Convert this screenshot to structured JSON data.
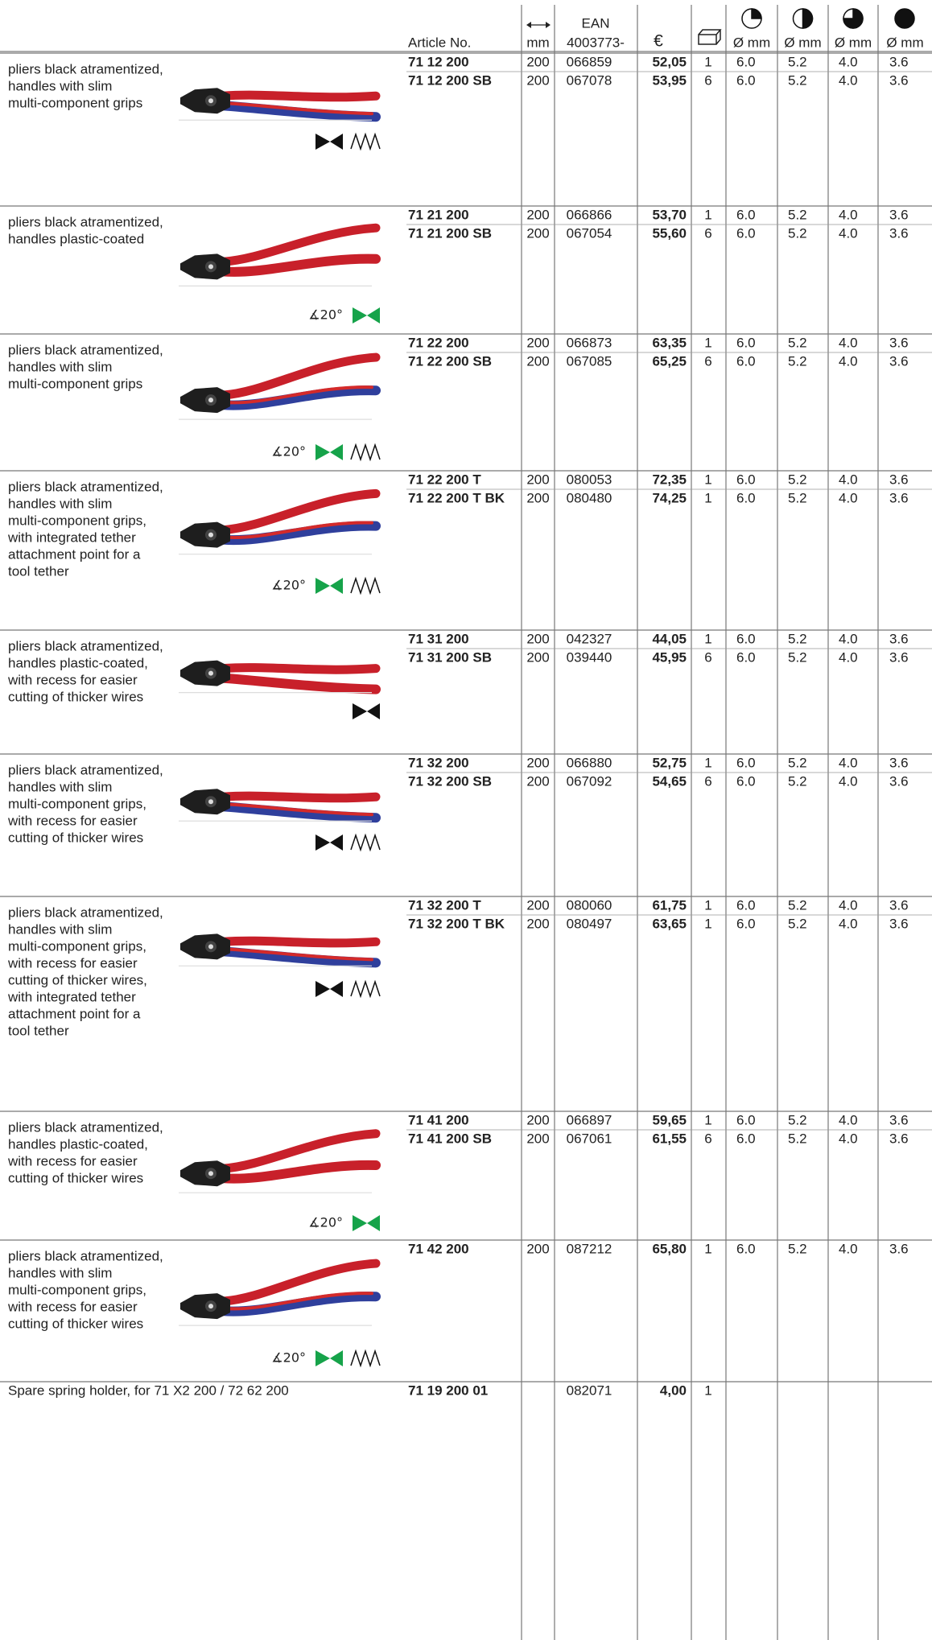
{
  "header": {
    "article_no": "Article No.",
    "length_unit": "mm",
    "ean": "EAN",
    "ean_prefix": "4003773-",
    "price": "€",
    "diameters": [
      "Ø mm",
      "Ø mm",
      "Ø mm",
      "Ø mm"
    ]
  },
  "groups": [
    {
      "description": [
        "pliers black atramentized,",
        "handles with slim",
        "multi-component grips"
      ],
      "rows": [
        [
          "71 12 200",
          "200",
          "066859",
          "52,05",
          "1",
          "6.0",
          "5.2",
          "4.0",
          "3.6"
        ],
        [
          "71 12 200 SB",
          "200",
          "067078",
          "53,95",
          "6",
          "6.0",
          "5.2",
          "4.0",
          "3.6"
        ]
      ]
    },
    {
      "description": [
        "pliers black atramentized,",
        "handles plastic-coated"
      ],
      "angle": "∡20°",
      "rows": [
        [
          "71 21 200",
          "200",
          "066866",
          "53,70",
          "1",
          "6.0",
          "5.2",
          "4.0",
          "3.6"
        ],
        [
          "71 21 200 SB",
          "200",
          "067054",
          "55,60",
          "6",
          "6.0",
          "5.2",
          "4.0",
          "3.6"
        ]
      ]
    },
    {
      "description": [
        "pliers black atramentized,",
        "handles with slim",
        "multi-component grips"
      ],
      "angle": "∡20°",
      "rows": [
        [
          "71 22 200",
          "200",
          "066873",
          "63,35",
          "1",
          "6.0",
          "5.2",
          "4.0",
          "3.6"
        ],
        [
          "71 22 200 SB",
          "200",
          "067085",
          "65,25",
          "6",
          "6.0",
          "5.2",
          "4.0",
          "3.6"
        ]
      ]
    },
    {
      "description": [
        "pliers black atramentized,",
        "handles with slim",
        "multi-component grips,",
        "with integrated tether",
        "attachment point for a",
        "tool tether"
      ],
      "angle": "∡20°",
      "rows": [
        [
          "71 22 200 T",
          "200",
          "080053",
          "72,35",
          "1",
          "6.0",
          "5.2",
          "4.0",
          "3.6"
        ],
        [
          "71 22 200 T BK",
          "200",
          "080480",
          "74,25",
          "1",
          "6.0",
          "5.2",
          "4.0",
          "3.6"
        ]
      ]
    },
    {
      "description": [
        "pliers black atramentized,",
        "handles plastic-coated,",
        "with recess for easier",
        "cutting of thicker wires"
      ],
      "rows": [
        [
          "71 31 200",
          "200",
          "042327",
          "44,05",
          "1",
          "6.0",
          "5.2",
          "4.0",
          "3.6"
        ],
        [
          "71 31 200 SB",
          "200",
          "039440",
          "45,95",
          "6",
          "6.0",
          "5.2",
          "4.0",
          "3.6"
        ]
      ]
    },
    {
      "description": [
        "pliers black atramentized,",
        "handles with slim",
        "multi-component grips,",
        "with recess for easier",
        "cutting of thicker wires"
      ],
      "rows": [
        [
          "71 32 200",
          "200",
          "066880",
          "52,75",
          "1",
          "6.0",
          "5.2",
          "4.0",
          "3.6"
        ],
        [
          "71 32 200 SB",
          "200",
          "067092",
          "54,65",
          "6",
          "6.0",
          "5.2",
          "4.0",
          "3.6"
        ]
      ]
    },
    {
      "description": [
        "pliers black atramentized,",
        "handles with slim",
        "multi-component grips,",
        "with recess for easier",
        "cutting of thicker wires,",
        "with integrated tether",
        "attachment point for a",
        "tool tether"
      ],
      "rows": [
        [
          "71 32 200 T",
          "200",
          "080060",
          "61,75",
          "1",
          "6.0",
          "5.2",
          "4.0",
          "3.6"
        ],
        [
          "71 32 200 T BK",
          "200",
          "080497",
          "63,65",
          "1",
          "6.0",
          "5.2",
          "4.0",
          "3.6"
        ]
      ]
    },
    {
      "description": [
        "pliers black atramentized,",
        "handles plastic-coated,",
        "with recess for easier",
        "cutting of thicker wires"
      ],
      "angle": "∡20°",
      "rows": [
        [
          "71 41 200",
          "200",
          "066897",
          "59,65",
          "1",
          "6.0",
          "5.2",
          "4.0",
          "3.6"
        ],
        [
          "71 41 200 SB",
          "200",
          "067061",
          "61,55",
          "6",
          "6.0",
          "5.2",
          "4.0",
          "3.6"
        ]
      ]
    },
    {
      "description": [
        "pliers black atramentized,",
        "handles with slim",
        "multi-component grips,",
        "with recess for easier",
        "cutting of thicker wires"
      ],
      "angle": "∡20°",
      "rows": [
        [
          "71 42 200",
          "200",
          "087212",
          "65,80",
          "1",
          "6.0",
          "5.2",
          "4.0",
          "3.6"
        ]
      ]
    },
    {
      "description": [
        "Spare spring holder, for 71 X2 200 / 72 62 200"
      ],
      "rows": [
        [
          "71 19 200 01",
          null,
          "082071",
          "4,00",
          "1",
          null,
          null,
          null,
          null
        ]
      ]
    }
  ]
}
